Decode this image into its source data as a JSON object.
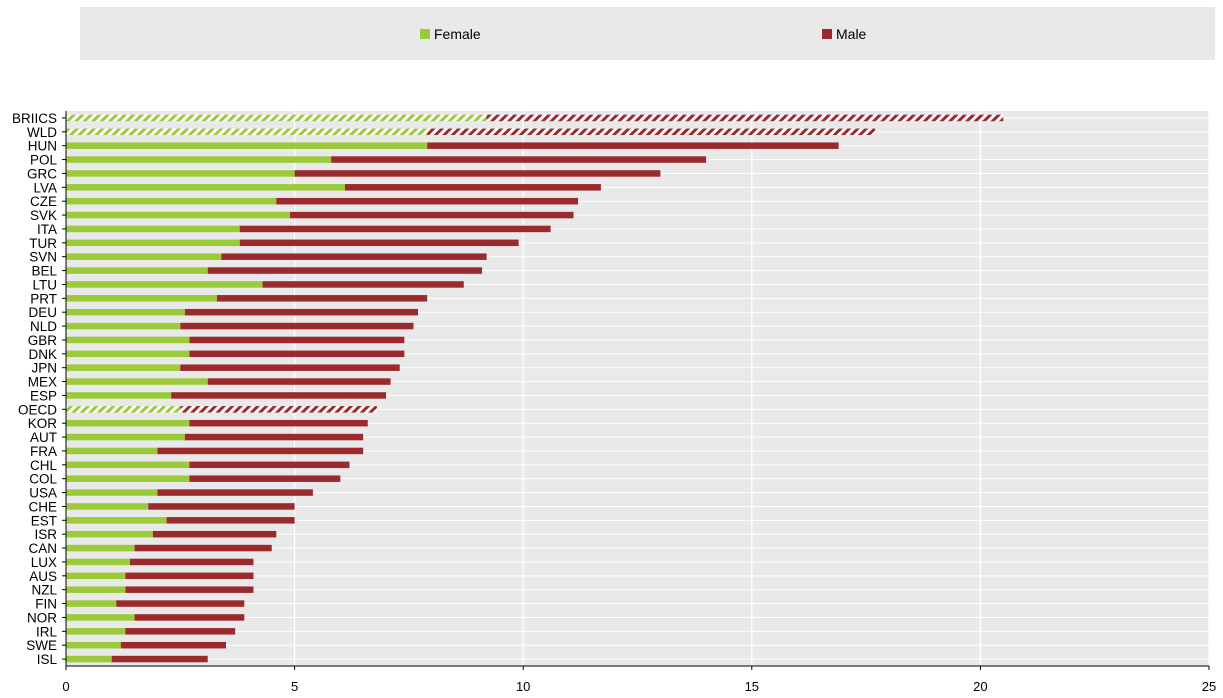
{
  "chart_data": {
    "type": "bar",
    "orientation": "horizontal",
    "stacked": true,
    "categories": [
      "BRIICS",
      "WLD",
      "HUN",
      "POL",
      "GRC",
      "LVA",
      "CZE",
      "SVK",
      "ITA",
      "TUR",
      "SVN",
      "BEL",
      "LTU",
      "PRT",
      "DEU",
      "NLD",
      "GBR",
      "DNK",
      "JPN",
      "MEX",
      "ESP",
      "OECD",
      "KOR",
      "AUT",
      "FRA",
      "CHL",
      "COL",
      "USA",
      "CHE",
      "EST",
      "ISR",
      "CAN",
      "LUX",
      "AUS",
      "NZL",
      "FIN",
      "NOR",
      "IRL",
      "SWE",
      "ISL"
    ],
    "series": [
      {
        "name": "Female",
        "color": "#9bcb3b",
        "values": [
          9.2,
          7.9,
          7.9,
          5.8,
          5.0,
          6.1,
          4.6,
          4.9,
          3.8,
          3.8,
          3.4,
          3.1,
          4.3,
          3.3,
          2.6,
          2.5,
          2.7,
          2.7,
          2.5,
          3.1,
          2.3,
          2.5,
          2.7,
          2.6,
          2.0,
          2.7,
          2.7,
          2.0,
          1.8,
          2.2,
          1.9,
          1.5,
          1.4,
          1.3,
          1.3,
          1.1,
          1.5,
          1.3,
          1.2,
          1.0
        ]
      },
      {
        "name": "Male",
        "color": "#9b2a2f",
        "values": [
          11.3,
          9.8,
          9.0,
          8.2,
          8.0,
          5.6,
          6.6,
          6.2,
          6.8,
          6.1,
          5.8,
          6.0,
          4.4,
          4.6,
          5.1,
          5.1,
          4.7,
          4.7,
          4.8,
          4.0,
          4.7,
          4.3,
          3.9,
          3.9,
          4.5,
          3.5,
          3.3,
          3.4,
          3.2,
          2.8,
          2.7,
          3.0,
          2.7,
          2.8,
          2.8,
          2.8,
          2.4,
          2.4,
          2.3,
          2.1
        ]
      }
    ],
    "hatched_categories": [
      "BRIICS",
      "WLD",
      "OECD"
    ],
    "xlim": [
      0,
      25
    ],
    "xticks": [
      0,
      5,
      10,
      15,
      20,
      25
    ],
    "grid": true,
    "legend_position": "top"
  }
}
